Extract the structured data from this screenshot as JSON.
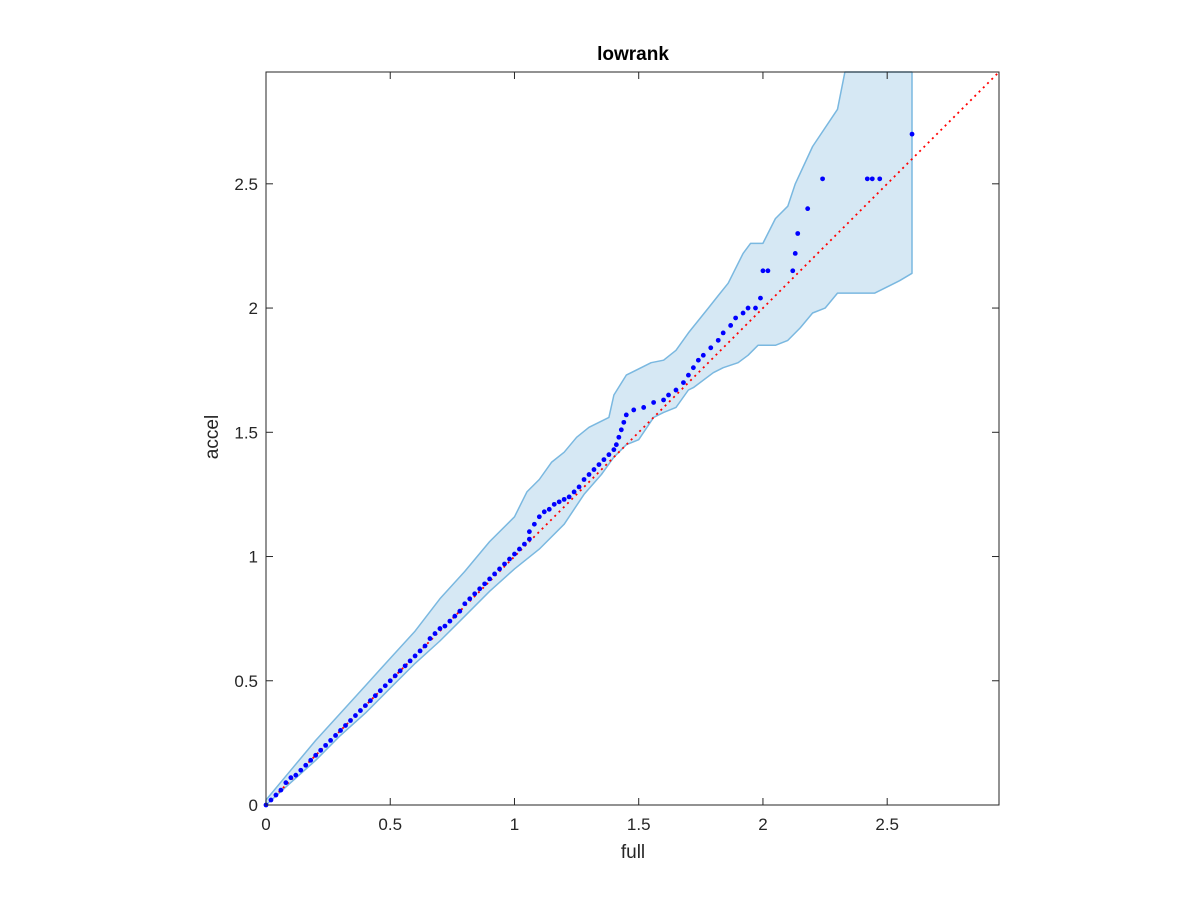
{
  "chart_data": {
    "type": "scatter",
    "title": "lowrank",
    "xlabel": "full",
    "ylabel": "accel",
    "xlim": [
      0,
      2.95
    ],
    "ylim": [
      0,
      2.95
    ],
    "grid": false,
    "legend": "none",
    "x_ticks": [
      0,
      0.5,
      1,
      1.5,
      2,
      2.5
    ],
    "y_ticks": [
      0,
      0.5,
      1,
      1.5,
      2,
      2.5
    ],
    "x_tick_labels": [
      "0",
      "0.5",
      "1",
      "1.5",
      "2",
      "2.5"
    ],
    "y_tick_labels": [
      "0",
      "0.5",
      "1",
      "1.5",
      "2",
      "2.5"
    ],
    "colors": {
      "points": "#0000ff",
      "band_fill": "#d6e8f4",
      "band_edge": "#7ab8e0",
      "reference_line": "#ff0000",
      "axes": "#262626"
    },
    "reference_line": {
      "style": "dotted",
      "from": [
        0,
        0
      ],
      "to": [
        2.95,
        2.95
      ]
    },
    "points": [
      [
        0.0,
        0.0
      ],
      [
        0.02,
        0.02
      ],
      [
        0.04,
        0.04
      ],
      [
        0.06,
        0.06
      ],
      [
        0.08,
        0.09
      ],
      [
        0.1,
        0.11
      ],
      [
        0.12,
        0.12
      ],
      [
        0.14,
        0.14
      ],
      [
        0.16,
        0.16
      ],
      [
        0.18,
        0.18
      ],
      [
        0.2,
        0.2
      ],
      [
        0.22,
        0.22
      ],
      [
        0.24,
        0.24
      ],
      [
        0.26,
        0.26
      ],
      [
        0.28,
        0.28
      ],
      [
        0.3,
        0.3
      ],
      [
        0.32,
        0.32
      ],
      [
        0.34,
        0.34
      ],
      [
        0.36,
        0.36
      ],
      [
        0.38,
        0.38
      ],
      [
        0.4,
        0.4
      ],
      [
        0.42,
        0.42
      ],
      [
        0.44,
        0.44
      ],
      [
        0.46,
        0.46
      ],
      [
        0.48,
        0.48
      ],
      [
        0.5,
        0.5
      ],
      [
        0.52,
        0.52
      ],
      [
        0.54,
        0.54
      ],
      [
        0.56,
        0.56
      ],
      [
        0.58,
        0.58
      ],
      [
        0.6,
        0.6
      ],
      [
        0.62,
        0.62
      ],
      [
        0.64,
        0.64
      ],
      [
        0.66,
        0.67
      ],
      [
        0.68,
        0.69
      ],
      [
        0.7,
        0.71
      ],
      [
        0.72,
        0.72
      ],
      [
        0.74,
        0.74
      ],
      [
        0.76,
        0.76
      ],
      [
        0.78,
        0.78
      ],
      [
        0.8,
        0.81
      ],
      [
        0.82,
        0.83
      ],
      [
        0.84,
        0.85
      ],
      [
        0.86,
        0.87
      ],
      [
        0.88,
        0.89
      ],
      [
        0.9,
        0.91
      ],
      [
        0.92,
        0.93
      ],
      [
        0.94,
        0.95
      ],
      [
        0.96,
        0.97
      ],
      [
        0.98,
        0.99
      ],
      [
        1.0,
        1.01
      ],
      [
        1.02,
        1.03
      ],
      [
        1.04,
        1.05
      ],
      [
        1.06,
        1.07
      ],
      [
        1.06,
        1.1
      ],
      [
        1.08,
        1.13
      ],
      [
        1.1,
        1.16
      ],
      [
        1.12,
        1.18
      ],
      [
        1.14,
        1.19
      ],
      [
        1.16,
        1.21
      ],
      [
        1.18,
        1.22
      ],
      [
        1.2,
        1.23
      ],
      [
        1.22,
        1.24
      ],
      [
        1.24,
        1.26
      ],
      [
        1.26,
        1.28
      ],
      [
        1.28,
        1.31
      ],
      [
        1.3,
        1.33
      ],
      [
        1.32,
        1.35
      ],
      [
        1.34,
        1.37
      ],
      [
        1.36,
        1.39
      ],
      [
        1.38,
        1.41
      ],
      [
        1.4,
        1.43
      ],
      [
        1.41,
        1.45
      ],
      [
        1.42,
        1.48
      ],
      [
        1.43,
        1.51
      ],
      [
        1.44,
        1.54
      ],
      [
        1.45,
        1.57
      ],
      [
        1.48,
        1.59
      ],
      [
        1.52,
        1.6
      ],
      [
        1.56,
        1.62
      ],
      [
        1.6,
        1.63
      ],
      [
        1.62,
        1.65
      ],
      [
        1.65,
        1.67
      ],
      [
        1.68,
        1.7
      ],
      [
        1.7,
        1.73
      ],
      [
        1.72,
        1.76
      ],
      [
        1.74,
        1.79
      ],
      [
        1.76,
        1.81
      ],
      [
        1.79,
        1.84
      ],
      [
        1.82,
        1.87
      ],
      [
        1.84,
        1.9
      ],
      [
        1.87,
        1.93
      ],
      [
        1.89,
        1.96
      ],
      [
        1.92,
        1.98
      ],
      [
        1.94,
        2.0
      ],
      [
        1.97,
        2.0
      ],
      [
        1.99,
        2.04
      ],
      [
        2.0,
        2.15
      ],
      [
        2.02,
        2.15
      ],
      [
        2.12,
        2.15
      ],
      [
        2.13,
        2.22
      ],
      [
        2.14,
        2.3
      ],
      [
        2.18,
        2.4
      ],
      [
        2.24,
        2.52
      ],
      [
        2.42,
        2.52
      ],
      [
        2.44,
        2.52
      ],
      [
        2.47,
        2.52
      ],
      [
        2.6,
        2.7
      ]
    ],
    "confidence_band": {
      "upper": [
        [
          0.0,
          0.02
        ],
        [
          0.1,
          0.14
        ],
        [
          0.2,
          0.26
        ],
        [
          0.3,
          0.37
        ],
        [
          0.4,
          0.48
        ],
        [
          0.5,
          0.59
        ],
        [
          0.6,
          0.7
        ],
        [
          0.7,
          0.83
        ],
        [
          0.8,
          0.94
        ],
        [
          0.9,
          1.06
        ],
        [
          1.0,
          1.16
        ],
        [
          1.05,
          1.26
        ],
        [
          1.1,
          1.31
        ],
        [
          1.15,
          1.38
        ],
        [
          1.2,
          1.42
        ],
        [
          1.25,
          1.48
        ],
        [
          1.3,
          1.52
        ],
        [
          1.38,
          1.56
        ],
        [
          1.4,
          1.65
        ],
        [
          1.45,
          1.73
        ],
        [
          1.55,
          1.78
        ],
        [
          1.6,
          1.79
        ],
        [
          1.65,
          1.83
        ],
        [
          1.7,
          1.9
        ],
        [
          1.78,
          2.0
        ],
        [
          1.82,
          2.05
        ],
        [
          1.86,
          2.1
        ],
        [
          1.92,
          2.22
        ],
        [
          1.95,
          2.26
        ],
        [
          2.0,
          2.26
        ],
        [
          2.05,
          2.36
        ],
        [
          2.1,
          2.41
        ],
        [
          2.13,
          2.5
        ],
        [
          2.2,
          2.65
        ],
        [
          2.3,
          2.8
        ],
        [
          2.33,
          2.95
        ],
        [
          2.6,
          2.95
        ]
      ],
      "lower": [
        [
          2.6,
          2.14
        ],
        [
          2.55,
          2.11
        ],
        [
          2.45,
          2.06
        ],
        [
          2.3,
          2.06
        ],
        [
          2.25,
          2.0
        ],
        [
          2.2,
          1.98
        ],
        [
          2.15,
          1.92
        ],
        [
          2.1,
          1.87
        ],
        [
          2.05,
          1.85
        ],
        [
          1.98,
          1.85
        ],
        [
          1.94,
          1.81
        ],
        [
          1.9,
          1.78
        ],
        [
          1.84,
          1.76
        ],
        [
          1.8,
          1.74
        ],
        [
          1.72,
          1.68
        ],
        [
          1.7,
          1.67
        ],
        [
          1.65,
          1.6
        ],
        [
          1.6,
          1.58
        ],
        [
          1.56,
          1.56
        ],
        [
          1.5,
          1.47
        ],
        [
          1.45,
          1.45
        ],
        [
          1.4,
          1.4
        ],
        [
          1.35,
          1.33
        ],
        [
          1.28,
          1.25
        ],
        [
          1.2,
          1.13
        ],
        [
          1.1,
          1.03
        ],
        [
          1.0,
          0.95
        ],
        [
          0.9,
          0.86
        ],
        [
          0.8,
          0.76
        ],
        [
          0.7,
          0.66
        ],
        [
          0.6,
          0.57
        ],
        [
          0.5,
          0.47
        ],
        [
          0.4,
          0.37
        ],
        [
          0.3,
          0.28
        ],
        [
          0.2,
          0.18
        ],
        [
          0.1,
          0.09
        ],
        [
          0.0,
          0.0
        ]
      ]
    }
  }
}
